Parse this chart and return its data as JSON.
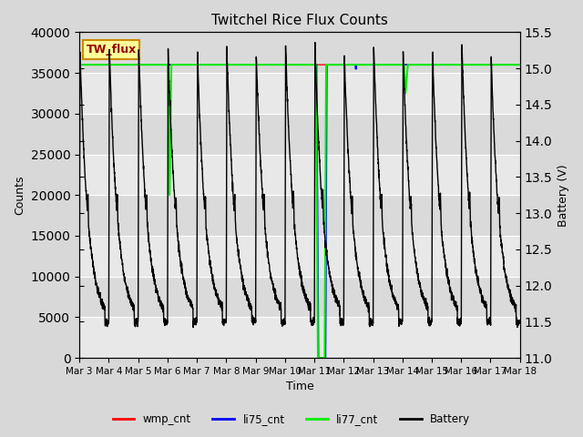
{
  "title": "Twitchel Rice Flux Counts",
  "xlabel": "Time",
  "ylabel_left": "Counts",
  "ylabel_right": "Battery (V)",
  "ylim_left": [
    0,
    40000
  ],
  "ylim_right": [
    11.0,
    15.5
  ],
  "yticks_left": [
    0,
    5000,
    10000,
    15000,
    20000,
    25000,
    30000,
    35000,
    40000
  ],
  "yticks_right": [
    11.0,
    11.5,
    12.0,
    12.5,
    13.0,
    13.5,
    14.0,
    14.5,
    15.0,
    15.5
  ],
  "fig_bg_color": "#d8d8d8",
  "plot_bg_color": "#e8e8e8",
  "band_colors": [
    "#e0e0e0",
    "#d0d0d0"
  ],
  "annotation_box": {
    "text": "TW_flux",
    "fc": "#ffff99",
    "ec": "#cc8800"
  },
  "legend_entries": [
    "wmp_cnt",
    "li75_cnt",
    "li77_cnt",
    "Battery"
  ],
  "legend_colors": [
    "red",
    "blue",
    "#00ff00",
    "black"
  ],
  "x_tick_labels": [
    "Mar 3",
    "Mar 4",
    "Mar 5",
    "Mar 6",
    "Mar 7",
    "Mar 8",
    "Mar 9",
    "Mar 10",
    "Mar 11",
    "Mar 12",
    "Mar 13",
    "Mar 14",
    "Mar 15",
    "Mar 16",
    "Mar 17",
    "Mar 18"
  ],
  "grid_color": "#ffffff",
  "grid_alpha": 0.8
}
